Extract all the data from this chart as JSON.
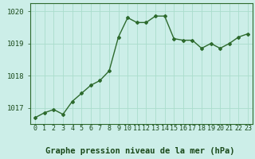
{
  "x": [
    0,
    1,
    2,
    3,
    4,
    5,
    6,
    7,
    8,
    9,
    10,
    11,
    12,
    13,
    14,
    15,
    16,
    17,
    18,
    19,
    20,
    21,
    22,
    23
  ],
  "y": [
    1016.7,
    1016.85,
    1016.95,
    1016.8,
    1017.2,
    1017.45,
    1017.7,
    1017.85,
    1018.15,
    1019.2,
    1019.8,
    1019.65,
    1019.65,
    1019.85,
    1019.85,
    1019.15,
    1019.1,
    1019.1,
    1018.85,
    1019.0,
    1018.85,
    1019.0,
    1019.2,
    1019.3
  ],
  "line_color": "#2d6a2d",
  "marker": "D",
  "marker_size": 2.0,
  "bg_color": "#cceee8",
  "grid_color": "#aaddcc",
  "ylim": [
    1016.5,
    1020.25
  ],
  "yticks": [
    1017,
    1018,
    1019,
    1020
  ],
  "xtick_labels": [
    "0",
    "1",
    "2",
    "3",
    "4",
    "5",
    "6",
    "7",
    "8",
    "9",
    "10",
    "11",
    "12",
    "13",
    "14",
    "15",
    "16",
    "17",
    "18",
    "19",
    "20",
    "21",
    "22",
    "23"
  ],
  "xlabel": "Graphe pression niveau de la mer (hPa)",
  "xlabel_fontsize": 7.5,
  "tick_fontsize": 6.0,
  "ytick_fontsize": 6.5,
  "line_width": 1.0,
  "text_color": "#1a4a1a"
}
